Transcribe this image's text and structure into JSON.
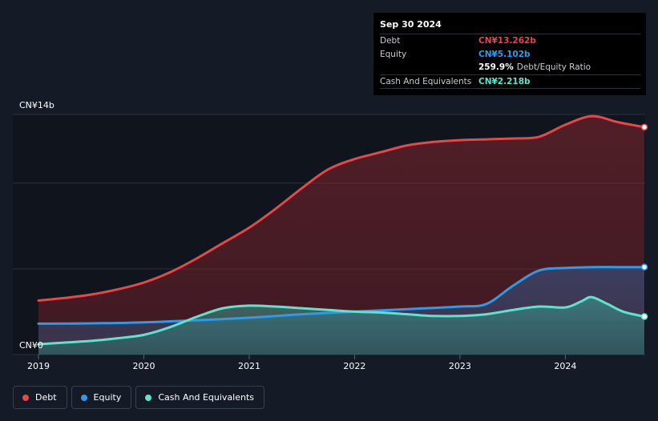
{
  "tooltip": {
    "date": "Sep 30 2024",
    "rows": [
      {
        "label": "Debt",
        "value": "CN¥13.262b",
        "color": "#e64848"
      },
      {
        "label": "Equity",
        "value": "CN¥5.102b",
        "color": "#2f9ae8"
      },
      {
        "label": "",
        "value": "259.9%",
        "suffix": "Debt/Equity Ratio",
        "color": "#ffffff"
      },
      {
        "label": "Cash And Equivalents",
        "value": "CN¥2.218b",
        "color": "#5fe3cd"
      }
    ]
  },
  "legend": {
    "items": [
      {
        "label": "Debt",
        "color": "#e64848"
      },
      {
        "label": "Equity",
        "color": "#2f9ae8"
      },
      {
        "label": "Cash And Equivalents",
        "color": "#5fe3cd"
      }
    ]
  },
  "chart_data": {
    "type": "area",
    "y_top_label": "CN¥14b",
    "y_bottom_label": "CN¥0",
    "ylim": [
      0,
      14
    ],
    "xlim": [
      2019.0,
      2024.75
    ],
    "x_ticks": [
      "2019",
      "2020",
      "2021",
      "2022",
      "2023",
      "2024"
    ],
    "x_tick_values": [
      2019,
      2020,
      2021,
      2022,
      2023,
      2024
    ],
    "grid": true,
    "legend_position": "bottom-left",
    "series": [
      {
        "name": "Debt",
        "color": "#e64848",
        "x": [
          2019.0,
          2019.25,
          2019.5,
          2019.75,
          2020.0,
          2020.25,
          2020.5,
          2020.75,
          2021.0,
          2021.25,
          2021.5,
          2021.75,
          2022.0,
          2022.25,
          2022.5,
          2022.75,
          2023.0,
          2023.25,
          2023.5,
          2023.75,
          2024.0,
          2024.25,
          2024.5,
          2024.75
        ],
        "values": [
          3.15,
          3.3,
          3.5,
          3.8,
          4.2,
          4.8,
          5.6,
          6.5,
          7.4,
          8.5,
          9.7,
          10.8,
          11.4,
          11.8,
          12.2,
          12.4,
          12.5,
          12.55,
          12.6,
          12.7,
          13.4,
          13.9,
          13.55,
          13.262
        ]
      },
      {
        "name": "Equity",
        "color": "#2f9ae8",
        "x": [
          2019.0,
          2019.5,
          2020.0,
          2020.5,
          2021.0,
          2021.5,
          2022.0,
          2022.5,
          2023.0,
          2023.25,
          2023.5,
          2023.75,
          2024.0,
          2024.25,
          2024.5,
          2024.75
        ],
        "values": [
          1.8,
          1.82,
          1.88,
          2.0,
          2.15,
          2.35,
          2.5,
          2.65,
          2.8,
          2.95,
          4.0,
          4.9,
          5.05,
          5.1,
          5.1,
          5.102
        ]
      },
      {
        "name": "Cash And Equivalents",
        "color": "#5fe3cd",
        "x": [
          2019.0,
          2019.25,
          2019.5,
          2019.75,
          2020.0,
          2020.25,
          2020.5,
          2020.75,
          2021.0,
          2021.25,
          2021.5,
          2021.75,
          2022.0,
          2022.25,
          2022.5,
          2022.75,
          2023.0,
          2023.25,
          2023.5,
          2023.75,
          2024.0,
          2024.15,
          2024.25,
          2024.4,
          2024.55,
          2024.75
        ],
        "values": [
          0.6,
          0.7,
          0.8,
          0.95,
          1.15,
          1.6,
          2.2,
          2.7,
          2.85,
          2.8,
          2.7,
          2.6,
          2.5,
          2.45,
          2.35,
          2.25,
          2.25,
          2.35,
          2.6,
          2.8,
          2.75,
          3.1,
          3.35,
          2.95,
          2.5,
          2.218
        ]
      }
    ]
  }
}
